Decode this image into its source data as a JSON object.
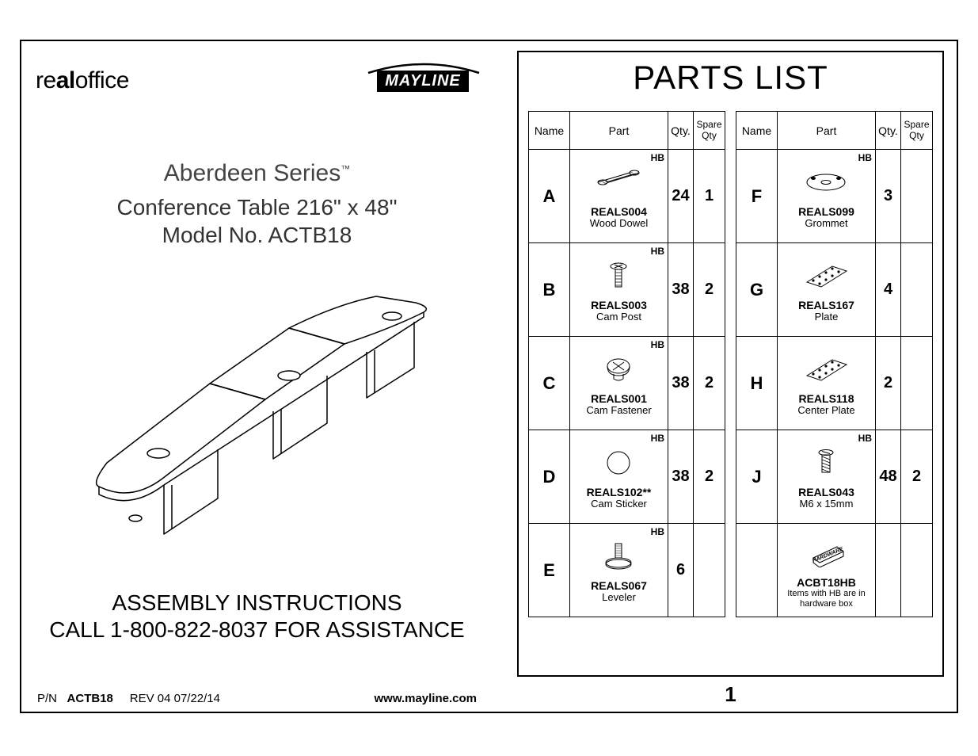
{
  "left": {
    "logo_real_prefix": "re",
    "logo_real_bold": "al",
    "logo_real_suffix": "office",
    "logo_mayline": "MAYLINE",
    "series": "Aberdeen Series",
    "series_tm": "™",
    "subtitle_line1": "Conference Table 216\" x 48\"",
    "subtitle_line2": "Model No. ACTB18",
    "asm_line1": "ASSEMBLY INSTRUCTIONS",
    "asm_line2": "CALL 1-800-822-8037 FOR ASSISTANCE",
    "footer_pn_label": "P/N",
    "footer_pn": "ACTB18",
    "footer_rev": "REV 04   07/22/14",
    "footer_url": "www.mayline.com"
  },
  "right": {
    "title": "PARTS LIST",
    "page_num": "1",
    "headers": {
      "name": "Name",
      "part": "Part",
      "qty": "Qty.",
      "spare": "Spare Qty"
    },
    "left_rows": [
      {
        "name": "A",
        "hb": "HB",
        "icon": "dowel",
        "code": "REALS004",
        "desc": "Wood Dowel",
        "qty": "24",
        "spare": "1"
      },
      {
        "name": "B",
        "hb": "HB",
        "icon": "campost",
        "code": "REALS003",
        "desc": "Cam Post",
        "qty": "38",
        "spare": "2"
      },
      {
        "name": "C",
        "hb": "HB",
        "icon": "camfast",
        "code": "REALS001",
        "desc": "Cam Fastener",
        "qty": "38",
        "spare": "2"
      },
      {
        "name": "D",
        "hb": "HB",
        "icon": "sticker",
        "code": "REALS102**",
        "desc": "Cam Sticker",
        "qty": "38",
        "spare": "2"
      },
      {
        "name": "E",
        "hb": "HB",
        "icon": "leveler",
        "code": "REALS067",
        "desc": "Leveler",
        "qty": "6",
        "spare": ""
      }
    ],
    "right_rows": [
      {
        "name": "F",
        "hb": "HB",
        "icon": "grommet",
        "code": "REALS099",
        "desc": "Grommet",
        "qty": "3",
        "spare": ""
      },
      {
        "name": "G",
        "hb": "",
        "icon": "plate",
        "code": "REALS167",
        "desc": "Plate",
        "qty": "4",
        "spare": ""
      },
      {
        "name": "H",
        "hb": "",
        "icon": "plate",
        "code": "REALS118",
        "desc": "Center Plate",
        "qty": "2",
        "spare": ""
      },
      {
        "name": "J",
        "hb": "HB",
        "icon": "screw",
        "code": "REALS043",
        "desc": "M6 x 15mm",
        "qty": "48",
        "spare": "2"
      },
      {
        "name": "",
        "hb": "",
        "icon": "hwbox",
        "code": "ACBT18HB",
        "desc": "Items with HB are in hardware box",
        "qty": "",
        "spare": ""
      }
    ]
  },
  "colors": {
    "stroke": "#000000",
    "bg": "#ffffff"
  }
}
